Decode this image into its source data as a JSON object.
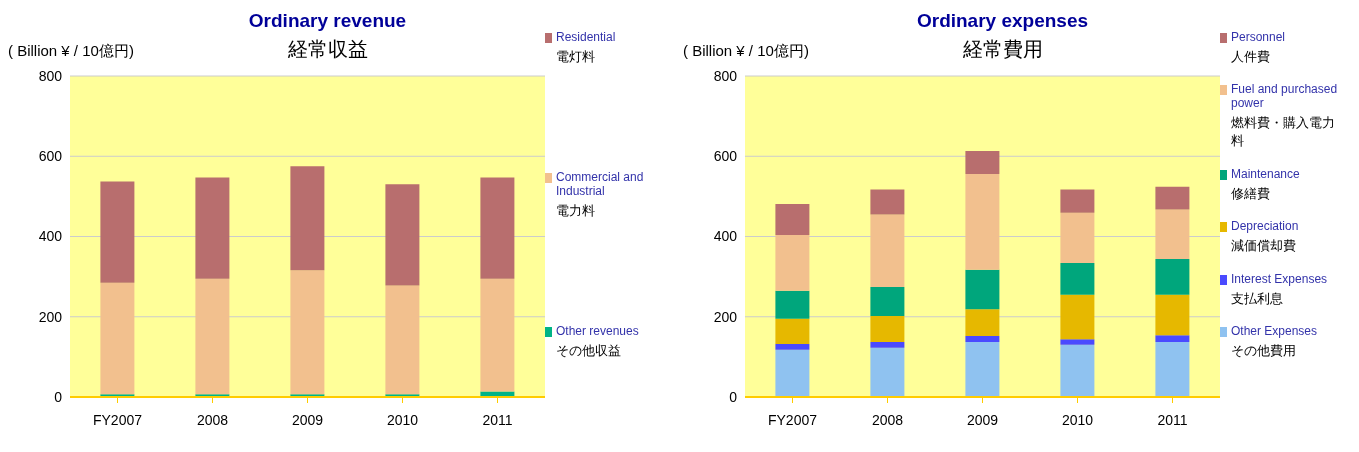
{
  "chart_data": [
    {
      "type": "bar",
      "title": "Ordinary revenue",
      "subtitle": "経常収益",
      "ylabel": "( Billion ¥ / 10億円)",
      "categories": [
        "FY2007",
        "2008",
        "2009",
        "2010",
        "2011"
      ],
      "stacked": true,
      "ylim": [
        0,
        800
      ],
      "yticks": [
        0,
        200,
        400,
        600,
        800
      ],
      "grid": "y",
      "legend": "right",
      "series": [
        {
          "name": "Other revenues\nその他収益",
          "color": "#00b386",
          "values": [
            7,
            7,
            7,
            7,
            14
          ]
        },
        {
          "name": "Commercial and Industrial\n電力料",
          "color": "#f2c08e",
          "values": [
            278,
            288,
            309,
            271,
            281
          ]
        },
        {
          "name": "Residential\n電灯料",
          "color": "#b86e6e",
          "values": [
            252,
            252,
            259,
            252,
            252
          ]
        }
      ]
    },
    {
      "type": "bar",
      "title": "Ordinary expenses",
      "subtitle": "経常費用",
      "ylabel": "( Billion ¥ / 10億円)",
      "categories": [
        "FY2007",
        "2008",
        "2009",
        "2010",
        "2011"
      ],
      "stacked": true,
      "ylim": [
        0,
        800
      ],
      "yticks": [
        0,
        200,
        400,
        600,
        800
      ],
      "grid": "y",
      "legend": "right",
      "series": [
        {
          "name": "Other Expenses\nその他費用",
          "color": "#8fc2f0",
          "values": [
            118,
            123,
            137,
            130,
            137
          ]
        },
        {
          "name": "Interest Expenses\n支払利息",
          "color": "#4a4aff",
          "values": [
            14,
            14,
            15,
            14,
            17
          ]
        },
        {
          "name": "Depreciation\n減価償却費",
          "color": "#e6b800",
          "values": [
            63,
            65,
            67,
            111,
            101
          ]
        },
        {
          "name": "Maintenance\n修繕費",
          "color": "#00a67c",
          "values": [
            70,
            72,
            98,
            79,
            89
          ]
        },
        {
          "name": "Fuel and purchased power\n燃料費・購入電力料",
          "color": "#f2c08e",
          "values": [
            139,
            181,
            239,
            125,
            123
          ]
        },
        {
          "name": "Personnel\n人件費",
          "color": "#b86e6e",
          "values": [
            77,
            62,
            57,
            58,
            57
          ]
        }
      ]
    }
  ]
}
